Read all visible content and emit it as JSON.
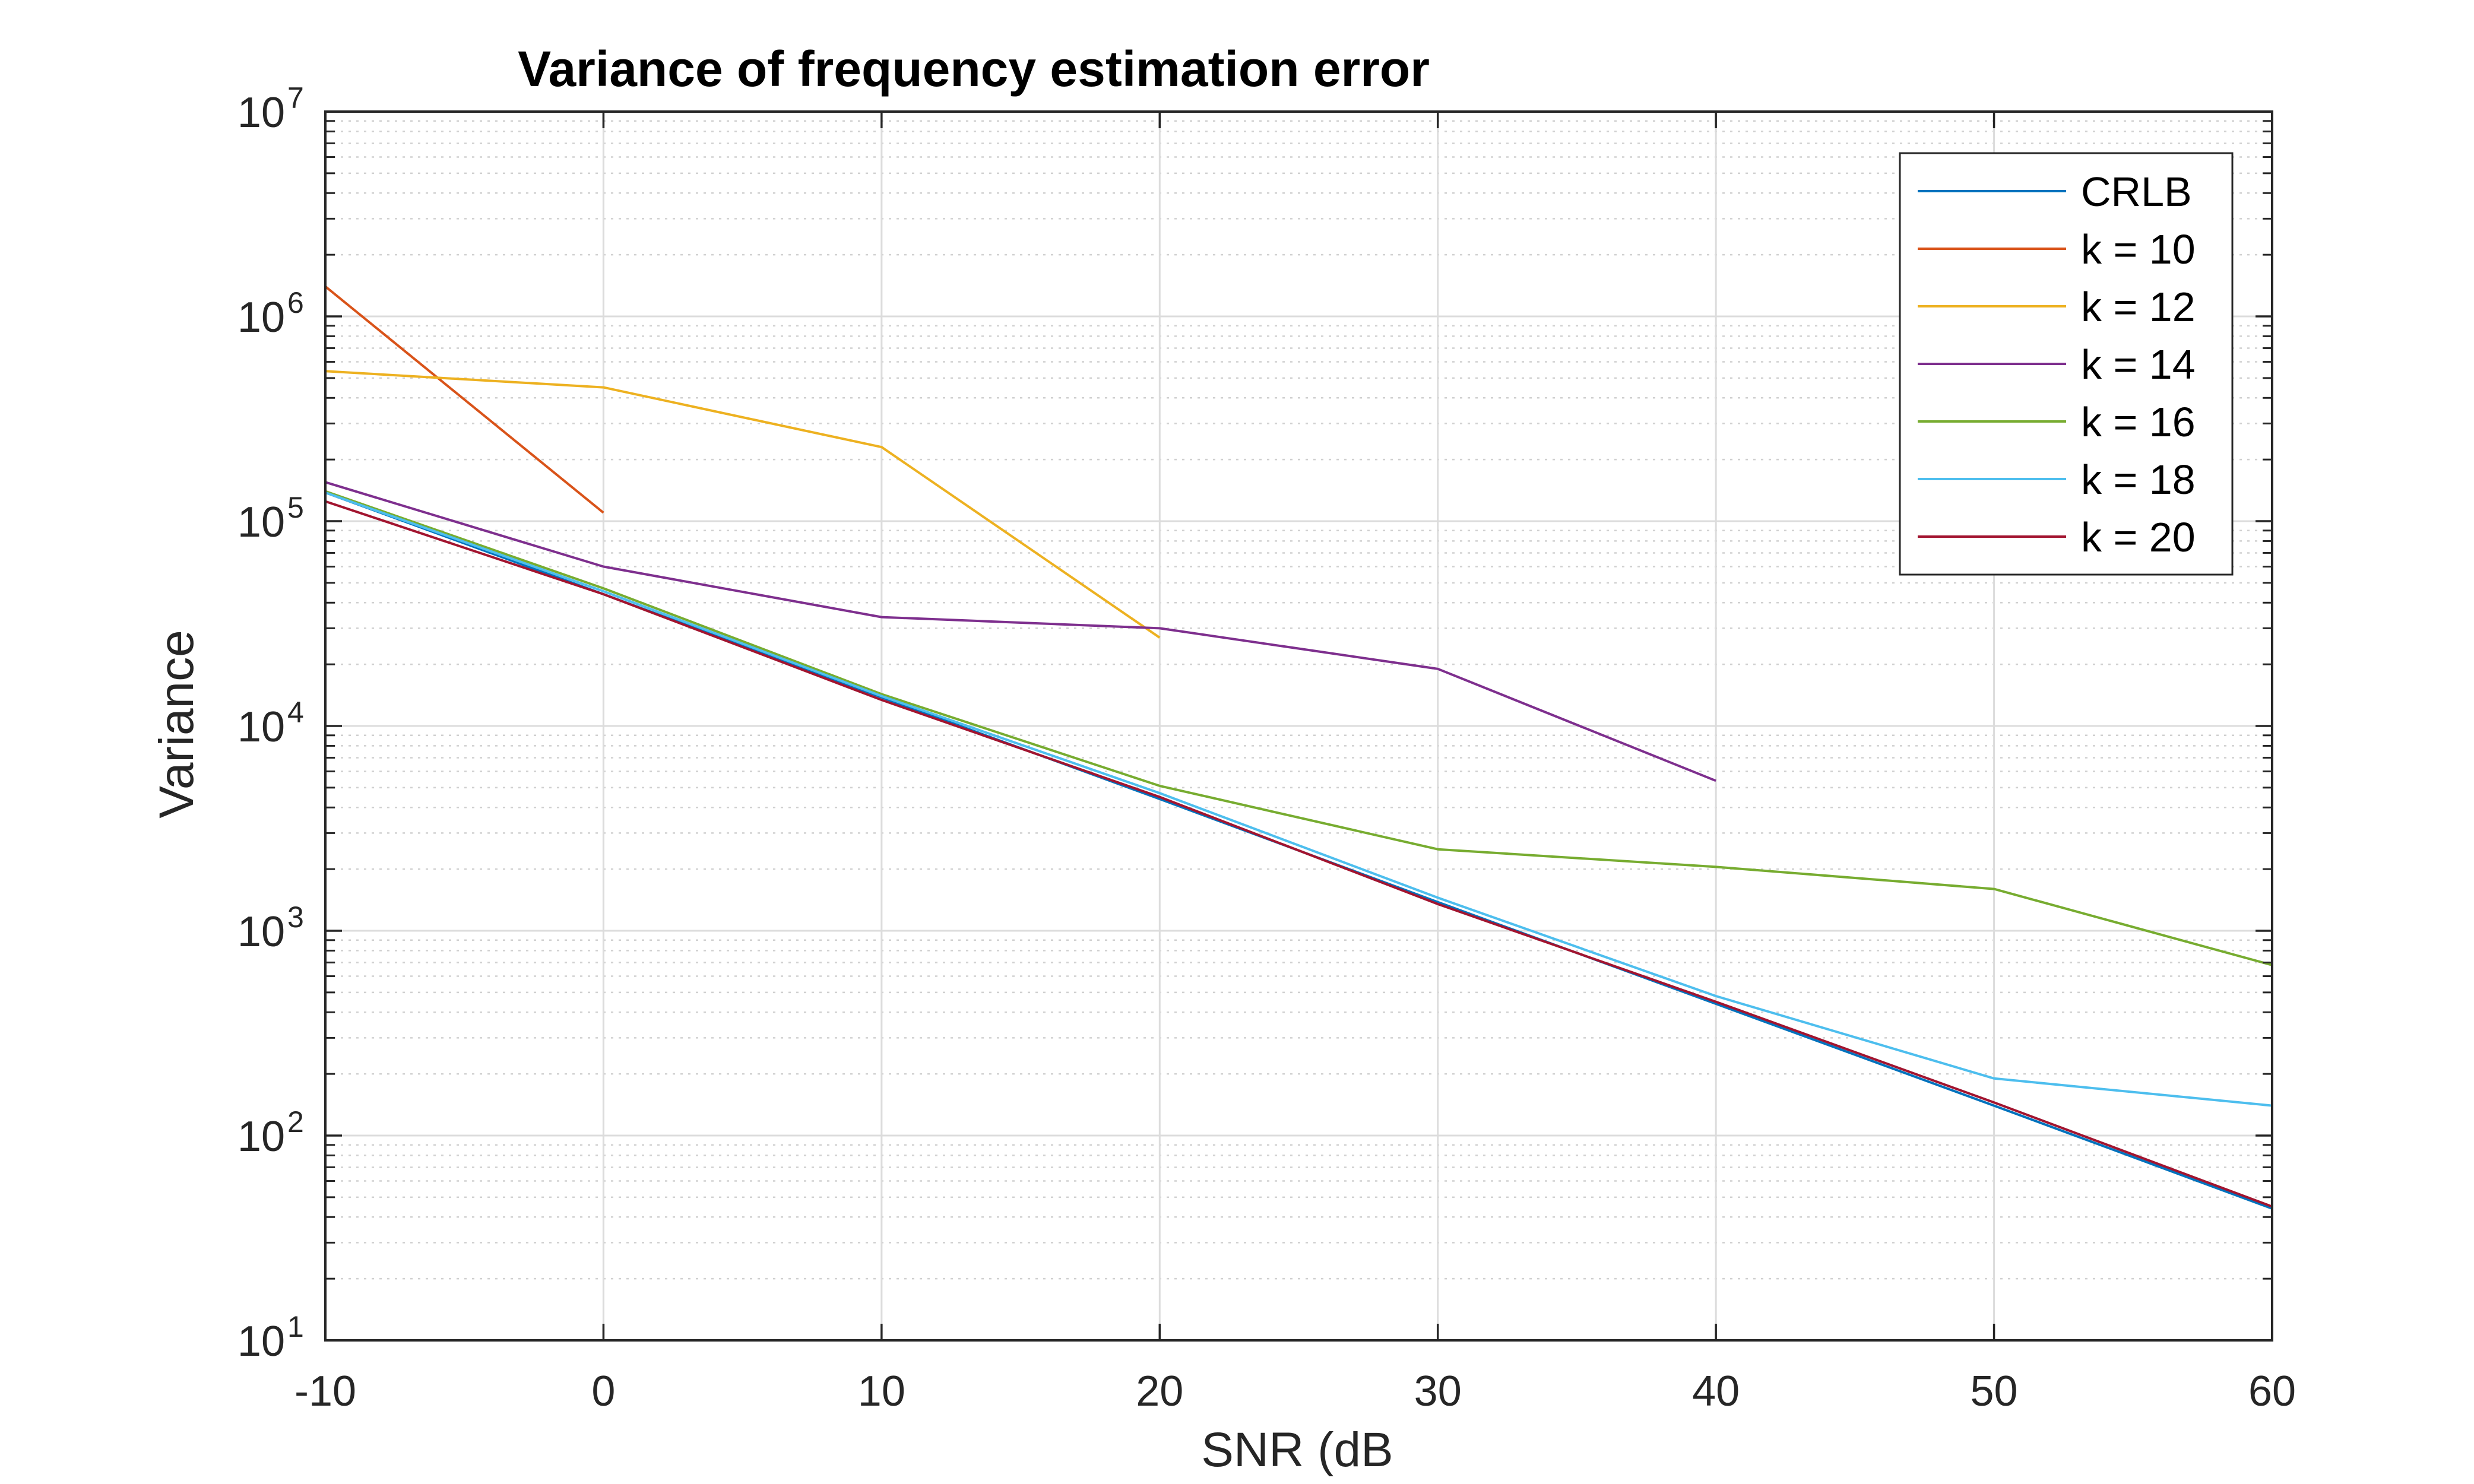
{
  "chart_data": {
    "type": "line",
    "title": "Variance of frequency estimation error",
    "xlabel": "SNR (dB",
    "ylabel": "Variance",
    "x_scale": "linear",
    "y_scale": "log",
    "xlim": [
      -10,
      60
    ],
    "ylim": [
      10,
      10000000
    ],
    "x_ticks": [
      -10,
      0,
      10,
      20,
      30,
      40,
      50,
      60
    ],
    "x_tick_labels": [
      "-10",
      "0",
      "10",
      "20",
      "30",
      "40",
      "50",
      "60"
    ],
    "y_ticks": [
      {
        "value": 10,
        "base": "10",
        "exp": "1"
      },
      {
        "value": 100,
        "base": "10",
        "exp": "2"
      },
      {
        "value": 1000,
        "base": "10",
        "exp": "3"
      },
      {
        "value": 10000,
        "base": "10",
        "exp": "4"
      },
      {
        "value": 100000,
        "base": "10",
        "exp": "5"
      },
      {
        "value": 1000000,
        "base": "10",
        "exp": "6"
      },
      {
        "value": 10000000,
        "base": "10",
        "exp": "7"
      }
    ],
    "grid": true,
    "minor_grid": true,
    "legend_position": "top-right",
    "series": [
      {
        "name": "CRLB",
        "color": "#0072BD",
        "x": [
          -10,
          0,
          10,
          20,
          30,
          40,
          50,
          60
        ],
        "values": [
          138000,
          44000,
          13800,
          4400,
          1380,
          440,
          140,
          44
        ]
      },
      {
        "name": "k = 10",
        "color": "#D95319",
        "x": [
          -10,
          0
        ],
        "values": [
          1400000,
          110000
        ]
      },
      {
        "name": "k = 12",
        "color": "#EDB120",
        "x": [
          -10,
          0,
          10,
          20
        ],
        "values": [
          540000,
          450000,
          230000,
          27000
        ]
      },
      {
        "name": "k = 14",
        "color": "#7E2F8E",
        "x": [
          -10,
          0,
          10,
          20,
          30,
          40
        ],
        "values": [
          155000,
          60000,
          34000,
          30000,
          19000,
          5400
        ]
      },
      {
        "name": "k = 16",
        "color": "#77AC30",
        "x": [
          -10,
          0,
          10,
          20,
          30,
          40,
          50,
          60
        ],
        "values": [
          140000,
          47000,
          14300,
          5100,
          2500,
          2050,
          1600,
          680
        ]
      },
      {
        "name": "k = 18",
        "color": "#4DBEEE",
        "x": [
          -10,
          0,
          10,
          20,
          30,
          40,
          50,
          60
        ],
        "values": [
          138000,
          45500,
          14000,
          4700,
          1450,
          480,
          190,
          140
        ]
      },
      {
        "name": "k = 20",
        "color": "#A2142F",
        "x": [
          -10,
          0,
          10,
          20,
          30,
          40,
          50,
          60
        ],
        "values": [
          125000,
          44000,
          13400,
          4500,
          1350,
          450,
          145,
          45
        ]
      }
    ]
  }
}
